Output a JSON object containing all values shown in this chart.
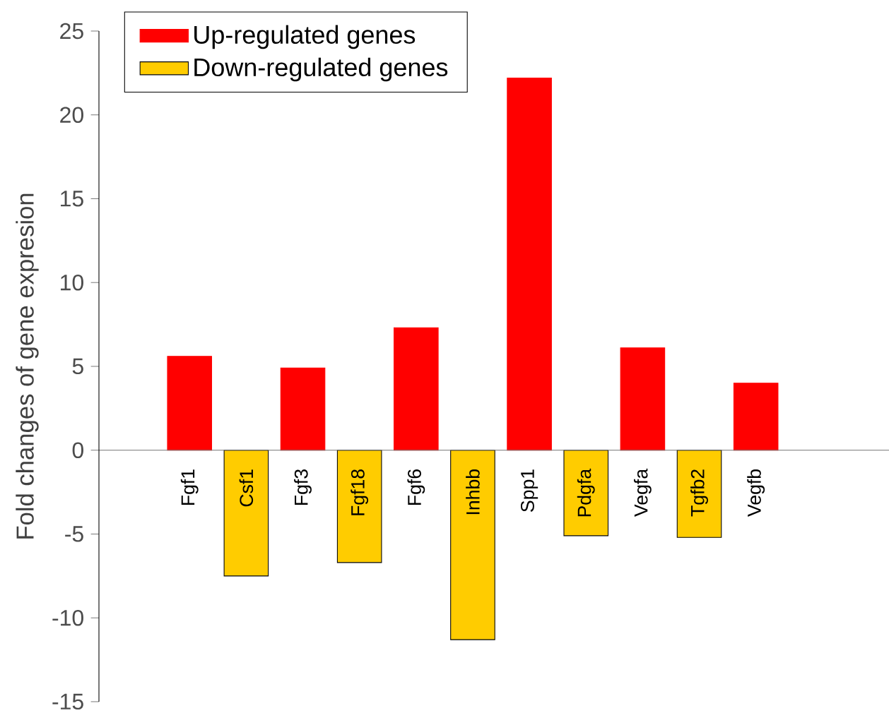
{
  "chart_data": {
    "type": "bar",
    "ylabel": "Fold changes of gene expresion",
    "categories": [
      "Fgf1",
      "Csf1",
      "Fgf3",
      "Fgf18",
      "Fgf6",
      "Inhbb",
      "Spp1",
      "Pdgfa",
      "Vegfa",
      "Tgfb2",
      "Vegfb"
    ],
    "series": [
      {
        "name": "Up-regulated genes",
        "color": "#ff0000",
        "values": [
          5.6,
          null,
          4.9,
          null,
          7.3,
          null,
          22.2,
          null,
          6.1,
          null,
          4.0
        ]
      },
      {
        "name": "Down-regulated genes",
        "color": "#ffcc00",
        "values": [
          null,
          -7.5,
          null,
          -6.7,
          null,
          -11.3,
          null,
          -5.1,
          null,
          -5.2,
          null
        ]
      }
    ],
    "ylim": [
      -15,
      25
    ],
    "yticks": [
      -15,
      -10,
      -5,
      0,
      5,
      10,
      15,
      20,
      25
    ],
    "legend": "top left",
    "grid": false
  }
}
